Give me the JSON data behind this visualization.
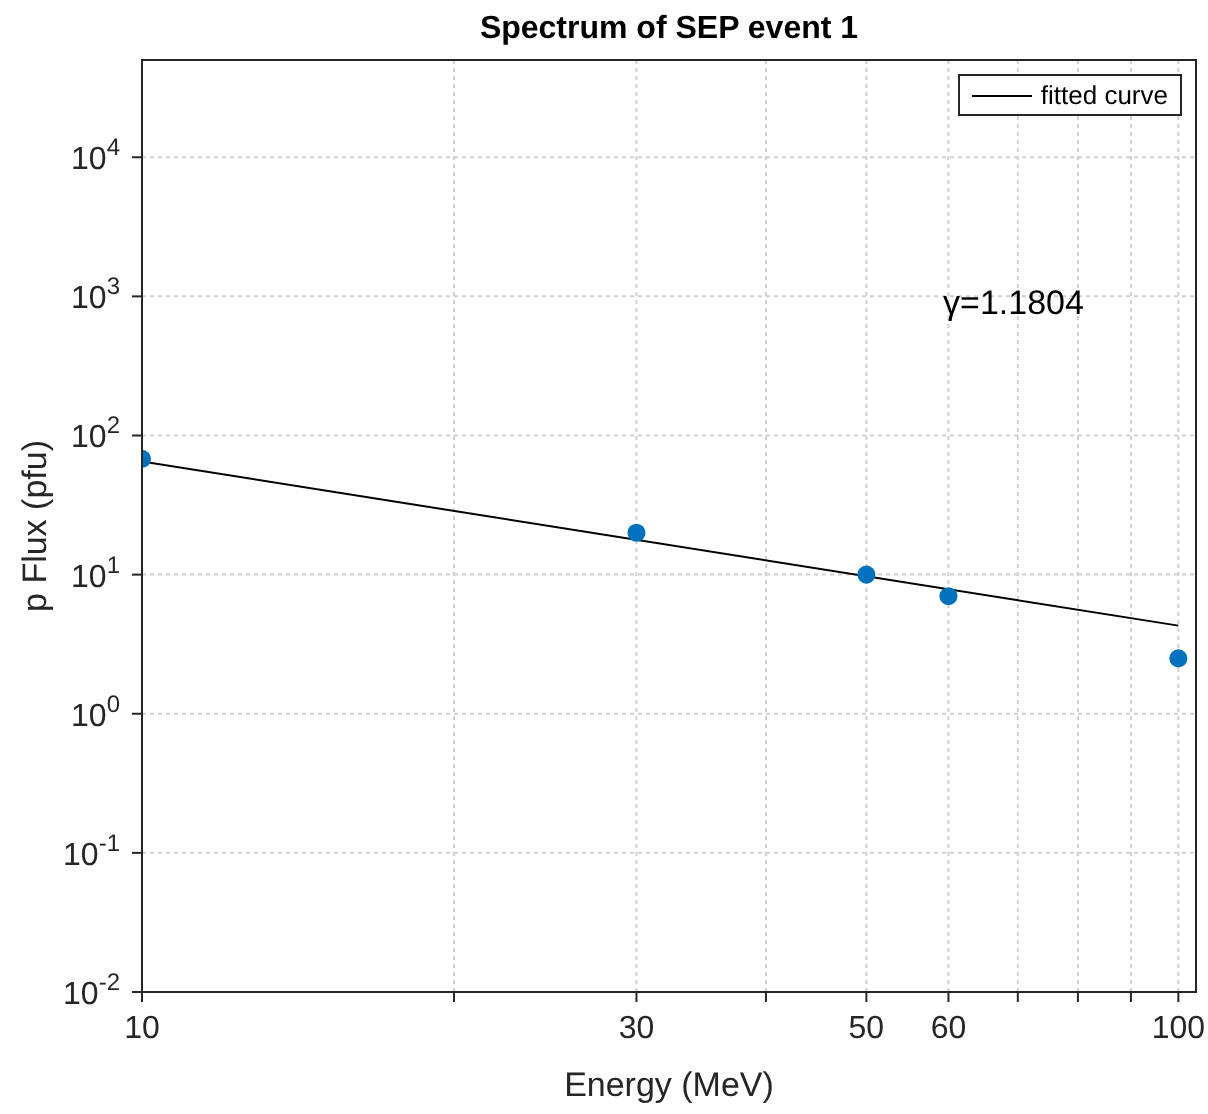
{
  "chart_data": {
    "type": "scatter",
    "title": "Spectrum of SEP event 1",
    "xlabel": "Energy (MeV)",
    "ylabel": "p Flux (pfu)",
    "log": "xy",
    "grid": true,
    "legend": "top right",
    "xlim": [
      10,
      104
    ],
    "ylim": [
      0.01,
      50000
    ],
    "xticks": [
      10,
      {
        "value": 20,
        "label": null
      },
      30,
      {
        "value": 40,
        "label": null
      },
      50,
      60,
      {
        "value": 70,
        "label": null
      },
      {
        "value": 80,
        "label": null
      },
      {
        "value": 90,
        "label": null
      },
      100
    ],
    "yticks": [
      {
        "value": 0.01,
        "label": "10$^{-2}$"
      },
      {
        "value": 0.1,
        "label": "10$^{-1}$"
      },
      {
        "value": 1,
        "label": "10$^{0}$"
      },
      {
        "value": 10,
        "label": "10$^{1}$"
      },
      {
        "value": 100,
        "label": "10$^{2}$"
      },
      {
        "value": 1000,
        "label": "10$^{3}$"
      },
      {
        "value": 10000,
        "label": "10$^{4}$"
      }
    ],
    "annotations": [
      "γ=1.1804"
    ],
    "series": [
      {
        "marker": "circle",
        "color": "#0072bd",
        "x": [
          10,
          30,
          50,
          60,
          100
        ],
        "values": [
          68,
          20,
          10,
          7,
          2.5
        ]
      },
      {
        "type": "line",
        "name": "fitted curve",
        "color": "#000000",
        "line_style": "solid",
        "marker": "none",
        "x": [
          10,
          100
        ],
        "values": [
          65,
          4.3
        ]
      }
    ]
  }
}
